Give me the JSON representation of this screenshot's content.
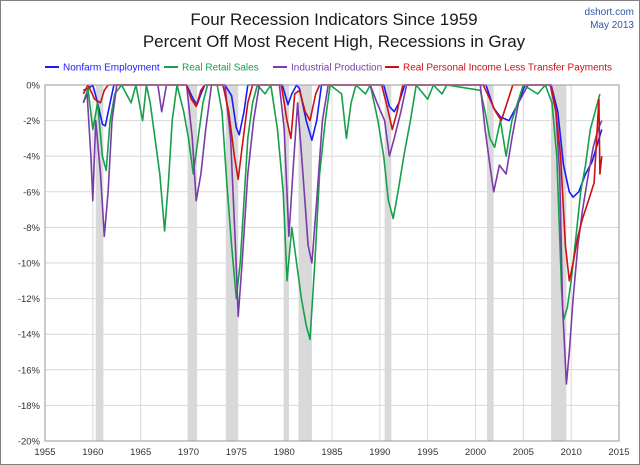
{
  "chart_data": {
    "type": "line",
    "title": "Four Recession Indicators Since 1959",
    "subtitle": "Percent Off Most Recent High, Recessions in Gray",
    "source": "dshort.com",
    "date": "May 2013",
    "xlim": [
      1955,
      2015
    ],
    "ylim": [
      -20,
      0
    ],
    "xticks": [
      "1955",
      "1960",
      "1965",
      "1970",
      "1975",
      "1980",
      "1985",
      "1990",
      "1995",
      "2000",
      "2005",
      "2010",
      "2015"
    ],
    "xtick_values": [
      1955,
      1960,
      1965,
      1970,
      1975,
      1980,
      1985,
      1990,
      1995,
      2000,
      2005,
      2010,
      2015
    ],
    "yticks": [
      "0%",
      "-2%",
      "-4%",
      "-6%",
      "-8%",
      "-10%",
      "-12%",
      "-14%",
      "-16%",
      "-18%",
      "-20%"
    ],
    "ytick_values": [
      0,
      -2,
      -4,
      -6,
      -8,
      -10,
      -12,
      -14,
      -16,
      -18,
      -20
    ],
    "grid": true,
    "legend_position": "top",
    "recessions": [
      [
        1960.3,
        1961.1
      ],
      [
        1969.9,
        1970.9
      ],
      [
        1973.9,
        1975.2
      ],
      [
        1980.0,
        1980.5
      ],
      [
        1981.5,
        1982.9
      ],
      [
        1990.5,
        1991.2
      ],
      [
        2001.2,
        2001.9
      ],
      [
        2007.9,
        2009.5
      ]
    ],
    "series": [
      {
        "name": "Nonfarm Employment",
        "color": "#1a1aff",
        "points": [
          [
            1959.0,
            -0.3
          ],
          [
            1959.5,
            -0.2
          ],
          [
            1960.0,
            0
          ],
          [
            1960.5,
            -1.0
          ],
          [
            1961.0,
            -2.2
          ],
          [
            1961.3,
            -2.3
          ],
          [
            1961.8,
            -1.0
          ],
          [
            1962.2,
            0
          ],
          [
            1967.0,
            0
          ],
          [
            1969.8,
            0
          ],
          [
            1970.5,
            -0.8
          ],
          [
            1970.9,
            -1.1
          ],
          [
            1971.3,
            -0.5
          ],
          [
            1971.7,
            0
          ],
          [
            1973.8,
            0
          ],
          [
            1974.5,
            -0.6
          ],
          [
            1975.0,
            -2.4
          ],
          [
            1975.3,
            -2.8
          ],
          [
            1975.8,
            -1.5
          ],
          [
            1976.2,
            0
          ],
          [
            1979.8,
            0
          ],
          [
            1980.4,
            -1.1
          ],
          [
            1980.8,
            -0.5
          ],
          [
            1981.3,
            0
          ],
          [
            1981.6,
            -0.2
          ],
          [
            1982.3,
            -2.0
          ],
          [
            1982.9,
            -3.1
          ],
          [
            1983.4,
            -2.0
          ],
          [
            1983.9,
            0
          ],
          [
            1990.4,
            0
          ],
          [
            1991.0,
            -1.2
          ],
          [
            1991.5,
            -1.5
          ],
          [
            1992.0,
            -1.0
          ],
          [
            1992.6,
            0
          ],
          [
            2001.1,
            0
          ],
          [
            2001.9,
            -1.3
          ],
          [
            2002.6,
            -1.8
          ],
          [
            2003.5,
            -2.0
          ],
          [
            2004.3,
            -1.2
          ],
          [
            2005.2,
            0
          ],
          [
            2007.9,
            0
          ],
          [
            2008.6,
            -1.5
          ],
          [
            2009.2,
            -4.5
          ],
          [
            2009.8,
            -6.0
          ],
          [
            2010.2,
            -6.3
          ],
          [
            2010.8,
            -6.0
          ],
          [
            2011.5,
            -5.0
          ],
          [
            2012.2,
            -4.3
          ],
          [
            2012.8,
            -3.2
          ],
          [
            2013.2,
            -2.5
          ]
        ]
      },
      {
        "name": "Real Retail Sales",
        "color": "#16a04a",
        "points": [
          [
            1959.0,
            -1.0
          ],
          [
            1959.5,
            -0.2
          ],
          [
            1960.0,
            -2.5
          ],
          [
            1960.5,
            -1.0
          ],
          [
            1961.0,
            -4.0
          ],
          [
            1961.4,
            -4.8
          ],
          [
            1961.8,
            -2.0
          ],
          [
            1962.3,
            -0.5
          ],
          [
            1963.0,
            0
          ],
          [
            1964.0,
            -1.0
          ],
          [
            1964.5,
            0
          ],
          [
            1965.2,
            -2.0
          ],
          [
            1965.6,
            0
          ],
          [
            1966.0,
            -1.0
          ],
          [
            1966.5,
            -3.0
          ],
          [
            1967.0,
            -5.0
          ],
          [
            1967.5,
            -8.2
          ],
          [
            1967.9,
            -5.5
          ],
          [
            1968.3,
            -2.0
          ],
          [
            1968.8,
            0
          ],
          [
            1969.5,
            -1.5
          ],
          [
            1970.0,
            -3.0
          ],
          [
            1970.5,
            -5.0
          ],
          [
            1971.0,
            -3.0
          ],
          [
            1971.5,
            -1.0
          ],
          [
            1972.0,
            0
          ],
          [
            1973.0,
            0
          ],
          [
            1973.5,
            -1.5
          ],
          [
            1974.0,
            -5.5
          ],
          [
            1974.5,
            -9.0
          ],
          [
            1975.0,
            -12.0
          ],
          [
            1975.4,
            -10.0
          ],
          [
            1975.8,
            -6.5
          ],
          [
            1976.2,
            -3.0
          ],
          [
            1976.7,
            -1.0
          ],
          [
            1977.2,
            0
          ],
          [
            1978.0,
            -0.5
          ],
          [
            1978.6,
            0
          ],
          [
            1979.3,
            -2.5
          ],
          [
            1979.9,
            -6.0
          ],
          [
            1980.3,
            -11.0
          ],
          [
            1980.8,
            -8.0
          ],
          [
            1981.3,
            -10.0
          ],
          [
            1981.8,
            -12.0
          ],
          [
            1982.3,
            -13.5
          ],
          [
            1982.7,
            -14.3
          ],
          [
            1983.2,
            -10.0
          ],
          [
            1983.7,
            -5.0
          ],
          [
            1984.3,
            -2.0
          ],
          [
            1984.8,
            0
          ],
          [
            1986.0,
            -0.5
          ],
          [
            1986.5,
            -3.0
          ],
          [
            1987.0,
            -1.0
          ],
          [
            1987.5,
            0
          ],
          [
            1988.5,
            -0.5
          ],
          [
            1989.0,
            0
          ],
          [
            1989.8,
            -2.0
          ],
          [
            1990.4,
            -4.0
          ],
          [
            1990.9,
            -6.5
          ],
          [
            1991.4,
            -7.5
          ],
          [
            1991.9,
            -6.0
          ],
          [
            1992.5,
            -4.0
          ],
          [
            1993.2,
            -2.0
          ],
          [
            1993.8,
            0
          ],
          [
            1995.0,
            -0.8
          ],
          [
            1995.6,
            0
          ],
          [
            1996.5,
            -0.5
          ],
          [
            1997.0,
            0
          ],
          [
            2000.5,
            -0.3
          ],
          [
            2001.0,
            -1.5
          ],
          [
            2001.5,
            -3.0
          ],
          [
            2002.0,
            -3.5
          ],
          [
            2002.6,
            -2.0
          ],
          [
            2003.2,
            -4.0
          ],
          [
            2003.8,
            -2.0
          ],
          [
            2004.4,
            -1.0
          ],
          [
            2005.0,
            0
          ],
          [
            2006.5,
            -0.5
          ],
          [
            2007.3,
            0
          ],
          [
            2008.0,
            -1.0
          ],
          [
            2008.5,
            -4.0
          ],
          [
            2009.0,
            -11.5
          ],
          [
            2009.2,
            -13.2
          ],
          [
            2009.6,
            -12.5
          ],
          [
            2010.0,
            -11.0
          ],
          [
            2010.5,
            -8.5
          ],
          [
            2011.0,
            -6.0
          ],
          [
            2011.5,
            -4.5
          ],
          [
            2012.0,
            -2.5
          ],
          [
            2012.5,
            -1.5
          ],
          [
            2013.0,
            -0.5
          ]
        ]
      },
      {
        "name": "Industrial Production",
        "color": "#7a3ca8",
        "points": [
          [
            1959.0,
            -1.0
          ],
          [
            1959.4,
            -0.5
          ],
          [
            1959.8,
            -4.0
          ],
          [
            1960.0,
            -6.5
          ],
          [
            1960.3,
            -2.0
          ],
          [
            1960.8,
            -5.0
          ],
          [
            1961.2,
            -8.5
          ],
          [
            1961.6,
            -6.0
          ],
          [
            1962.0,
            -2.0
          ],
          [
            1962.5,
            0
          ],
          [
            1966.8,
            0
          ],
          [
            1967.2,
            -1.5
          ],
          [
            1967.7,
            0
          ],
          [
            1969.8,
            0
          ],
          [
            1970.4,
            -3.0
          ],
          [
            1970.8,
            -6.5
          ],
          [
            1971.3,
            -5.0
          ],
          [
            1971.8,
            -2.5
          ],
          [
            1972.4,
            0
          ],
          [
            1973.8,
            0
          ],
          [
            1974.4,
            -3.0
          ],
          [
            1974.9,
            -9.0
          ],
          [
            1975.2,
            -13.0
          ],
          [
            1975.6,
            -10.0
          ],
          [
            1976.2,
            -5.0
          ],
          [
            1976.8,
            -2.0
          ],
          [
            1977.4,
            0
          ],
          [
            1979.5,
            0
          ],
          [
            1980.0,
            -2.5
          ],
          [
            1980.5,
            -8.5
          ],
          [
            1980.9,
            -5.0
          ],
          [
            1981.4,
            -1.0
          ],
          [
            1981.9,
            -4.5
          ],
          [
            1982.5,
            -9.0
          ],
          [
            1982.9,
            -10.0
          ],
          [
            1983.4,
            -6.5
          ],
          [
            1984.0,
            -2.0
          ],
          [
            1984.6,
            0
          ],
          [
            1989.0,
            0
          ],
          [
            1989.7,
            -1.0
          ],
          [
            1990.5,
            -2.0
          ],
          [
            1991.0,
            -4.0
          ],
          [
            1991.5,
            -3.0
          ],
          [
            1992.2,
            -1.5
          ],
          [
            1992.8,
            0
          ],
          [
            2000.5,
            0
          ],
          [
            2001.0,
            -2.5
          ],
          [
            2001.5,
            -4.5
          ],
          [
            2001.9,
            -6.0
          ],
          [
            2002.5,
            -4.5
          ],
          [
            2003.2,
            -5.0
          ],
          [
            2003.8,
            -3.0
          ],
          [
            2004.5,
            -1.0
          ],
          [
            2005.5,
            0
          ],
          [
            2007.8,
            0
          ],
          [
            2008.4,
            -1.5
          ],
          [
            2008.8,
            -5.0
          ],
          [
            2009.1,
            -12.5
          ],
          [
            2009.5,
            -16.8
          ],
          [
            2009.8,
            -15.0
          ],
          [
            2010.2,
            -12.0
          ],
          [
            2010.7,
            -9.0
          ],
          [
            2011.2,
            -7.0
          ],
          [
            2011.8,
            -5.0
          ],
          [
            2012.3,
            -3.5
          ],
          [
            2012.8,
            -2.5
          ],
          [
            2013.2,
            -2.0
          ]
        ]
      },
      {
        "name": "Real Personal Income Less Transfer Payments",
        "color": "#cc1111",
        "points": [
          [
            1959.0,
            -0.5
          ],
          [
            1959.5,
            0
          ],
          [
            1960.2,
            -0.8
          ],
          [
            1960.8,
            -1.0
          ],
          [
            1961.2,
            -0.3
          ],
          [
            1961.6,
            0
          ],
          [
            1969.8,
            0
          ],
          [
            1970.3,
            -0.8
          ],
          [
            1970.8,
            -1.2
          ],
          [
            1971.3,
            -0.3
          ],
          [
            1971.7,
            0
          ],
          [
            1973.6,
            0
          ],
          [
            1974.2,
            -1.5
          ],
          [
            1974.8,
            -4.0
          ],
          [
            1975.2,
            -5.3
          ],
          [
            1975.6,
            -3.5
          ],
          [
            1976.2,
            -1.0
          ],
          [
            1976.7,
            0
          ],
          [
            1979.7,
            0
          ],
          [
            1980.3,
            -2.0
          ],
          [
            1980.7,
            -3.0
          ],
          [
            1981.1,
            -0.5
          ],
          [
            1981.6,
            -0.3
          ],
          [
            1982.2,
            -1.5
          ],
          [
            1982.7,
            -2.0
          ],
          [
            1983.3,
            -0.5
          ],
          [
            1983.7,
            0
          ],
          [
            1990.2,
            0
          ],
          [
            1990.8,
            -1.3
          ],
          [
            1991.3,
            -2.5
          ],
          [
            1991.8,
            -1.5
          ],
          [
            1992.4,
            0
          ],
          [
            2000.8,
            0
          ],
          [
            2001.5,
            -0.8
          ],
          [
            2002.1,
            -1.5
          ],
          [
            2002.7,
            -2.0
          ],
          [
            2003.3,
            -1.0
          ],
          [
            2003.9,
            0
          ],
          [
            2007.9,
            0
          ],
          [
            2008.4,
            -1.5
          ],
          [
            2008.9,
            -4.0
          ],
          [
            2009.4,
            -9.0
          ],
          [
            2009.8,
            -11.0
          ],
          [
            2010.2,
            -10.0
          ],
          [
            2010.7,
            -8.5
          ],
          [
            2011.2,
            -7.5
          ],
          [
            2011.8,
            -6.5
          ],
          [
            2012.4,
            -5.5
          ],
          [
            2012.9,
            -0.8
          ],
          [
            2013.0,
            -5.0
          ],
          [
            2013.2,
            -4.0
          ]
        ]
      }
    ]
  }
}
